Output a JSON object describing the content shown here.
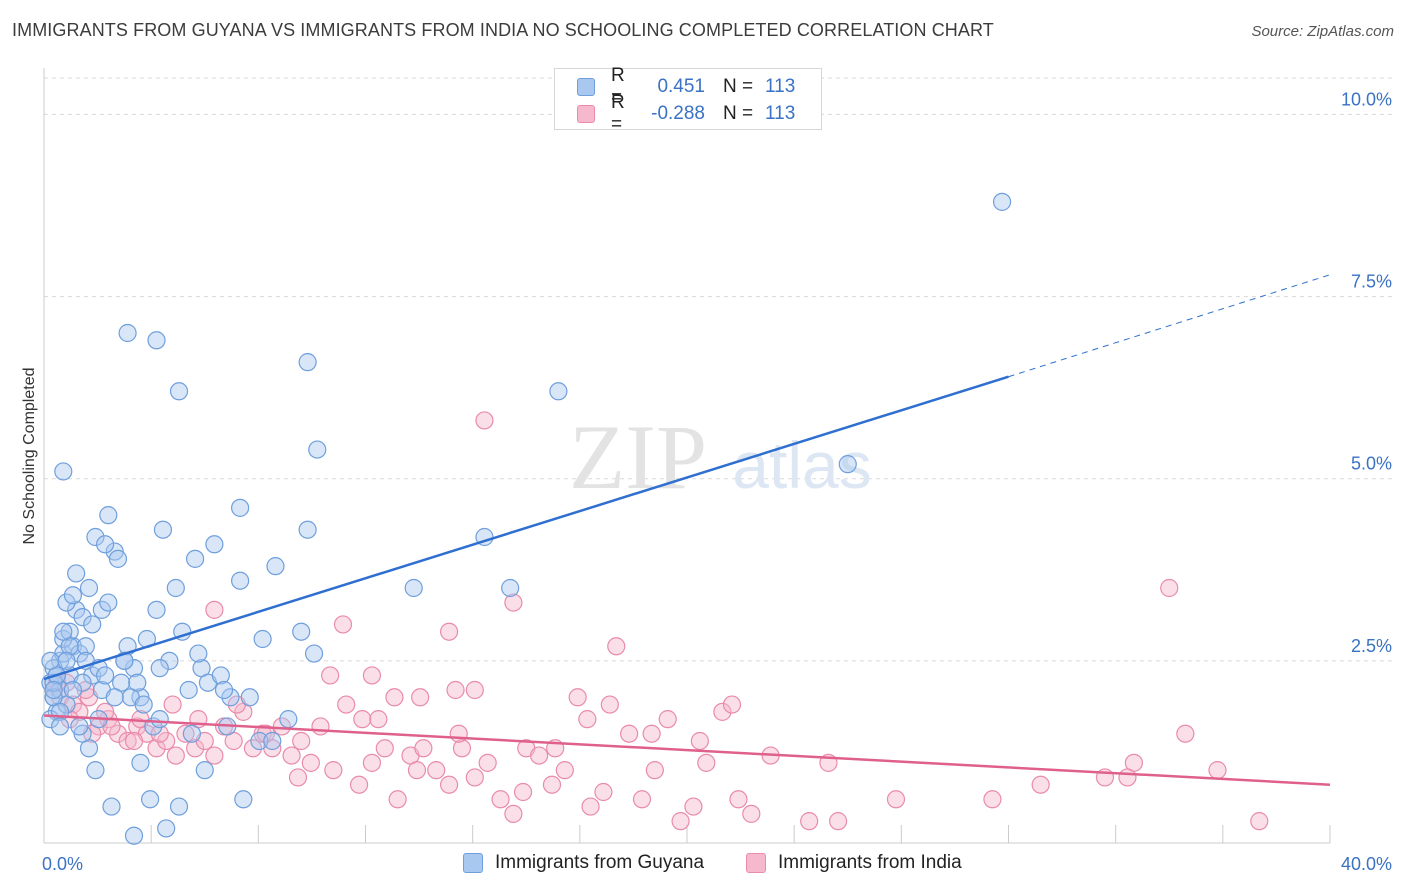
{
  "title": "IMMIGRANTS FROM GUYANA VS IMMIGRANTS FROM INDIA NO SCHOOLING COMPLETED CORRELATION CHART",
  "source": "Source: ZipAtlas.com",
  "watermark": {
    "zip": "ZIP",
    "atlas": "atlas"
  },
  "legend": {
    "rows": [
      {
        "r_label": "R =",
        "r_value": "0.451",
        "n_label": "N =",
        "n_value": "113"
      },
      {
        "r_label": "R =",
        "r_value": "-0.288",
        "n_label": "N =",
        "n_value": "113"
      }
    ]
  },
  "bottom_legend": [
    "Immigrants from Guyana",
    "Immigrants from India"
  ],
  "colors": {
    "guyana_fill": "#a9c8ef",
    "guyana_stroke": "#6f9fdc",
    "guyana_line": "#2f6fd0",
    "india_fill": "#f5b8cc",
    "india_stroke": "#e98bab",
    "india_line": "#e0608d",
    "tick_text": "#3a72c4",
    "grid": "#d9d9d9"
  },
  "chart_data": {
    "type": "scatter",
    "title": "IMMIGRANTS FROM GUYANA VS IMMIGRANTS FROM INDIA NO SCHOOLING COMPLETED CORRELATION CHART",
    "xlabel": "",
    "ylabel": "No Schooling Completed",
    "xlim": [
      0,
      40
    ],
    "ylim": [
      0,
      10.5
    ],
    "x_tick_labels": [
      "0.0%",
      "40.0%"
    ],
    "y_ticks": [
      2.5,
      5.0,
      7.5,
      10.0
    ],
    "y_tick_labels": [
      "2.5%",
      "5.0%",
      "7.5%",
      "10.0%"
    ],
    "series": [
      {
        "name": "Immigrants from Guyana",
        "r": 0.451,
        "n": 113,
        "trend": {
          "x0": 0,
          "y0": 2.25,
          "x1": 30,
          "y1": 6.4,
          "dash_to_x": 40,
          "dash_to_y": 7.8
        },
        "points": [
          [
            0.2,
            2.2
          ],
          [
            0.3,
            2.0
          ],
          [
            0.4,
            1.8
          ],
          [
            0.5,
            2.5
          ],
          [
            0.2,
            1.7
          ],
          [
            0.6,
            2.6
          ],
          [
            0.3,
            2.4
          ],
          [
            0.8,
            2.3
          ],
          [
            0.5,
            2.1
          ],
          [
            0.7,
            1.9
          ],
          [
            0.9,
            2.7
          ],
          [
            0.4,
            2.3
          ],
          [
            1.0,
            3.2
          ],
          [
            0.6,
            2.8
          ],
          [
            0.3,
            2.0
          ],
          [
            1.2,
            3.1
          ],
          [
            0.8,
            2.9
          ],
          [
            1.4,
            3.5
          ],
          [
            0.5,
            1.8
          ],
          [
            1.1,
            2.6
          ],
          [
            0.7,
            3.3
          ],
          [
            1.6,
            4.2
          ],
          [
            1.3,
            2.7
          ],
          [
            1.8,
            3.2
          ],
          [
            0.9,
            3.4
          ],
          [
            2.0,
            4.5
          ],
          [
            1.5,
            2.3
          ],
          [
            2.2,
            4.0
          ],
          [
            2.4,
            2.2
          ],
          [
            2.6,
            2.7
          ],
          [
            0.6,
            5.1
          ],
          [
            1.0,
            3.7
          ],
          [
            1.9,
            4.1
          ],
          [
            2.8,
            2.4
          ],
          [
            3.0,
            2.0
          ],
          [
            3.2,
            2.8
          ],
          [
            3.5,
            3.2
          ],
          [
            3.7,
            4.3
          ],
          [
            3.9,
            2.5
          ],
          [
            4.1,
            3.5
          ],
          [
            4.3,
            2.9
          ],
          [
            4.5,
            2.1
          ],
          [
            4.7,
            3.9
          ],
          [
            4.9,
            2.4
          ],
          [
            5.1,
            2.2
          ],
          [
            5.3,
            4.1
          ],
          [
            5.5,
            2.3
          ],
          [
            5.8,
            2.0
          ],
          [
            6.1,
            3.6
          ],
          [
            6.4,
            2.0
          ],
          [
            6.8,
            2.8
          ],
          [
            7.2,
            3.8
          ],
          [
            7.6,
            1.7
          ],
          [
            8.0,
            2.9
          ],
          [
            8.4,
            2.6
          ],
          [
            1.4,
            1.3
          ],
          [
            2.1,
            0.5
          ],
          [
            3.3,
            0.6
          ],
          [
            4.2,
            0.5
          ],
          [
            6.2,
            0.6
          ],
          [
            2.8,
            0.1
          ],
          [
            3.8,
            0.2
          ],
          [
            1.6,
            1.0
          ],
          [
            3.0,
            1.1
          ],
          [
            5.0,
            1.0
          ],
          [
            2.6,
            7.0
          ],
          [
            3.5,
            6.9
          ],
          [
            4.2,
            6.2
          ],
          [
            8.2,
            6.6
          ],
          [
            8.5,
            5.4
          ],
          [
            6.1,
            4.6
          ],
          [
            8.2,
            4.3
          ],
          [
            13.7,
            4.2
          ],
          [
            16.0,
            6.2
          ],
          [
            25.0,
            5.2
          ],
          [
            29.8,
            8.8
          ],
          [
            11.5,
            3.5
          ],
          [
            14.5,
            3.5
          ],
          [
            0.3,
            2.2
          ],
          [
            0.5,
            1.6
          ],
          [
            1.2,
            1.5
          ],
          [
            1.8,
            2.1
          ],
          [
            2.3,
            3.9
          ],
          [
            2.7,
            2.0
          ],
          [
            3.4,
            1.6
          ],
          [
            3.6,
            1.7
          ],
          [
            4.6,
            1.5
          ],
          [
            5.7,
            1.6
          ],
          [
            6.7,
            1.4
          ],
          [
            7.1,
            1.4
          ],
          [
            1.2,
            2.2
          ],
          [
            0.9,
            2.1
          ],
          [
            1.7,
            2.4
          ],
          [
            2.5,
            2.5
          ],
          [
            0.4,
            2.3
          ],
          [
            1.1,
            1.6
          ],
          [
            0.8,
            2.7
          ],
          [
            2.9,
            2.2
          ],
          [
            3.1,
            1.9
          ],
          [
            0.2,
            2.5
          ],
          [
            1.5,
            3.0
          ],
          [
            2.0,
            3.3
          ],
          [
            2.5,
            2.5
          ],
          [
            3.6,
            2.4
          ],
          [
            4.8,
            2.6
          ],
          [
            5.6,
            2.1
          ],
          [
            0.6,
            2.9
          ],
          [
            1.3,
            2.5
          ],
          [
            1.7,
            1.7
          ],
          [
            0.3,
            2.1
          ],
          [
            0.7,
            2.5
          ],
          [
            1.9,
            2.3
          ],
          [
            2.2,
            2.0
          ]
        ]
      },
      {
        "name": "Immigrants from India",
        "r": -0.288,
        "n": 113,
        "trend": {
          "x0": 0,
          "y0": 1.75,
          "x1": 40,
          "y1": 0.8
        },
        "points": [
          [
            0.3,
            2.1
          ],
          [
            0.5,
            2.0
          ],
          [
            0.7,
            2.2
          ],
          [
            0.9,
            1.9
          ],
          [
            1.1,
            1.8
          ],
          [
            1.4,
            2.0
          ],
          [
            1.7,
            1.6
          ],
          [
            2.0,
            1.7
          ],
          [
            2.3,
            1.5
          ],
          [
            2.6,
            1.4
          ],
          [
            2.9,
            1.6
          ],
          [
            3.2,
            1.5
          ],
          [
            3.5,
            1.3
          ],
          [
            3.8,
            1.4
          ],
          [
            4.1,
            1.2
          ],
          [
            4.4,
            1.5
          ],
          [
            4.7,
            1.3
          ],
          [
            5.0,
            1.4
          ],
          [
            5.3,
            1.2
          ],
          [
            5.6,
            1.6
          ],
          [
            5.9,
            1.4
          ],
          [
            6.2,
            1.8
          ],
          [
            6.5,
            1.3
          ],
          [
            6.8,
            1.5
          ],
          [
            7.1,
            1.3
          ],
          [
            7.4,
            1.6
          ],
          [
            7.7,
            1.2
          ],
          [
            8.0,
            1.4
          ],
          [
            8.3,
            1.1
          ],
          [
            8.6,
            1.6
          ],
          [
            9.0,
            1.0
          ],
          [
            9.4,
            1.9
          ],
          [
            9.8,
            0.8
          ],
          [
            10.2,
            1.1
          ],
          [
            10.6,
            1.3
          ],
          [
            11.0,
            0.6
          ],
          [
            11.4,
            1.2
          ],
          [
            11.8,
            1.3
          ],
          [
            12.2,
            1.0
          ],
          [
            12.6,
            0.8
          ],
          [
            13.0,
            1.3
          ],
          [
            13.4,
            0.9
          ],
          [
            13.8,
            1.1
          ],
          [
            14.2,
            0.6
          ],
          [
            14.6,
            0.4
          ],
          [
            15.0,
            1.3
          ],
          [
            15.4,
            1.2
          ],
          [
            15.8,
            0.8
          ],
          [
            16.2,
            1.0
          ],
          [
            16.6,
            2.0
          ],
          [
            17.0,
            0.5
          ],
          [
            17.4,
            0.7
          ],
          [
            17.8,
            2.7
          ],
          [
            18.2,
            1.5
          ],
          [
            18.6,
            0.6
          ],
          [
            19.0,
            1.0
          ],
          [
            19.4,
            1.7
          ],
          [
            19.8,
            0.3
          ],
          [
            20.2,
            0.5
          ],
          [
            20.6,
            1.1
          ],
          [
            13.7,
            5.8
          ],
          [
            14.6,
            3.3
          ],
          [
            9.3,
            3.0
          ],
          [
            12.6,
            2.9
          ],
          [
            17.6,
            1.9
          ],
          [
            21.6,
            0.6
          ],
          [
            22.0,
            0.4
          ],
          [
            23.8,
            0.3
          ],
          [
            26.5,
            0.6
          ],
          [
            29.5,
            0.6
          ],
          [
            31.0,
            0.8
          ],
          [
            35.0,
            3.5
          ],
          [
            35.5,
            1.5
          ],
          [
            36.5,
            1.0
          ],
          [
            37.8,
            0.3
          ],
          [
            5.3,
            3.2
          ],
          [
            13.4,
            2.1
          ],
          [
            10.2,
            2.3
          ],
          [
            11.7,
            2.0
          ],
          [
            12.8,
            2.1
          ],
          [
            10.9,
            2.0
          ],
          [
            3.0,
            1.7
          ],
          [
            4.0,
            1.9
          ],
          [
            2.1,
            1.6
          ],
          [
            1.5,
            1.5
          ],
          [
            0.4,
            2.2
          ],
          [
            0.8,
            1.7
          ],
          [
            1.3,
            2.1
          ],
          [
            2.8,
            1.4
          ],
          [
            3.6,
            1.5
          ],
          [
            6.9,
            1.5
          ],
          [
            7.9,
            0.9
          ],
          [
            8.9,
            2.3
          ],
          [
            9.9,
            1.7
          ],
          [
            10.4,
            1.7
          ],
          [
            11.6,
            1.0
          ],
          [
            12.9,
            1.5
          ],
          [
            14.9,
            0.7
          ],
          [
            15.9,
            1.3
          ],
          [
            16.9,
            1.7
          ],
          [
            18.9,
            1.5
          ],
          [
            20.4,
            1.4
          ],
          [
            21.1,
            1.8
          ],
          [
            21.4,
            1.9
          ],
          [
            22.6,
            1.2
          ],
          [
            24.7,
            0.3
          ],
          [
            24.4,
            1.1
          ],
          [
            33.9,
            1.1
          ],
          [
            33.7,
            0.9
          ],
          [
            33.0,
            0.9
          ],
          [
            1.9,
            1.8
          ],
          [
            4.8,
            1.7
          ],
          [
            6.0,
            1.9
          ]
        ]
      }
    ]
  }
}
